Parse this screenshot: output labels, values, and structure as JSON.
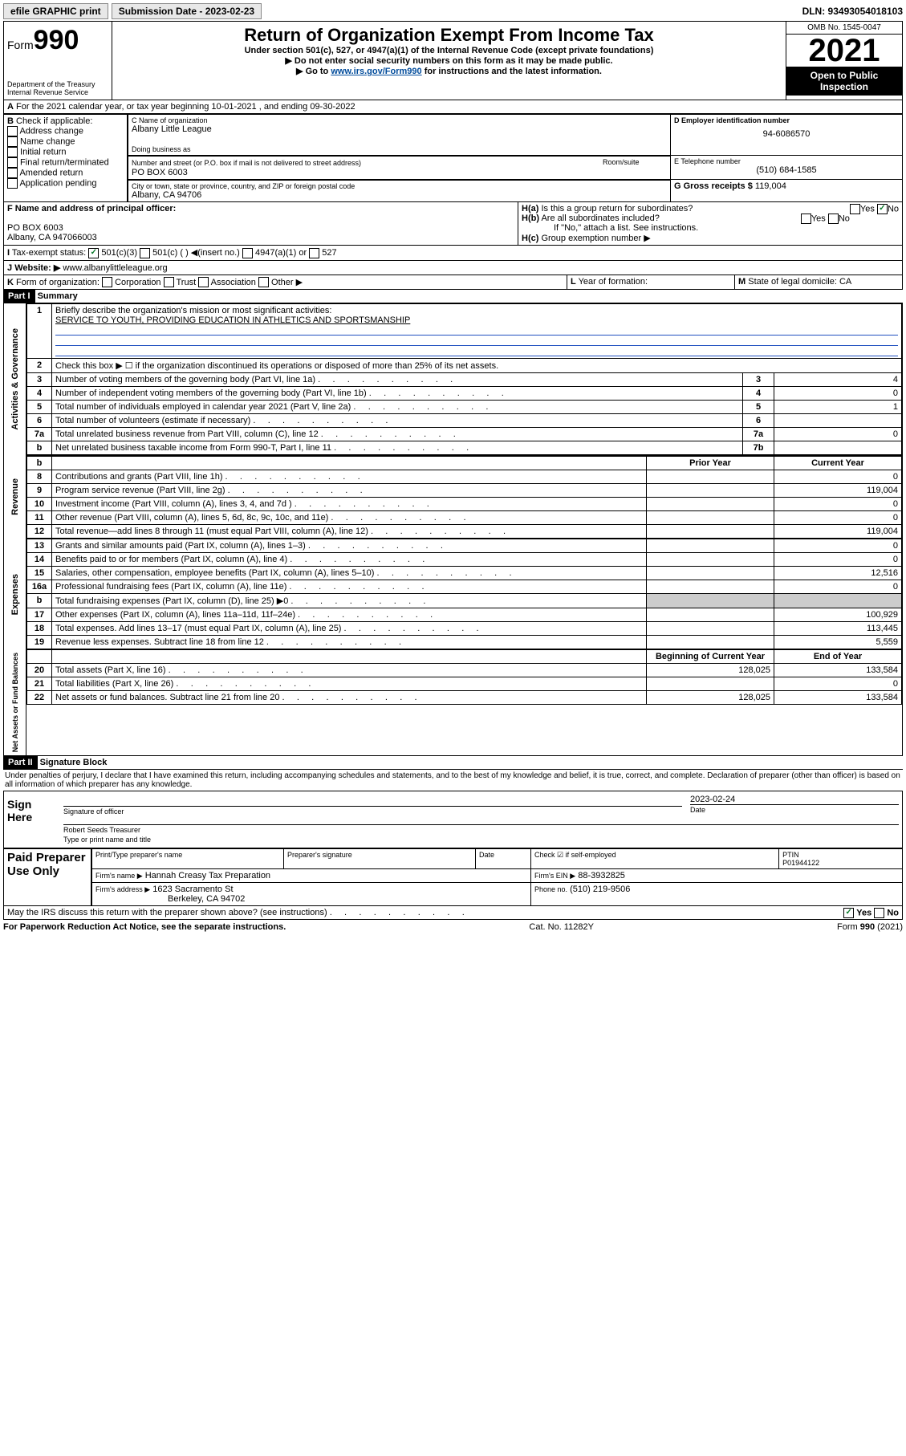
{
  "topbar": {
    "efile": "efile GRAPHIC print",
    "submission_label": "Submission Date - 2023-02-23",
    "dln": "DLN: 93493054018103"
  },
  "header": {
    "form_label": "Form",
    "form_no": "990",
    "dept": "Department of the Treasury",
    "irs": "Internal Revenue Service",
    "title": "Return of Organization Exempt From Income Tax",
    "sub1": "Under section 501(c), 527, or 4947(a)(1) of the Internal Revenue Code (except private foundations)",
    "sub2": "Do not enter social security numbers on this form as it may be made public.",
    "sub3_pre": "Go to ",
    "sub3_link": "www.irs.gov/Form990",
    "sub3_post": " for instructions and the latest information.",
    "omb": "OMB No. 1545-0047",
    "year": "2021",
    "open": "Open to Public Inspection"
  },
  "A": {
    "line": "For the 2021 calendar year, or tax year beginning 10-01-2021   , and ending 09-30-2022"
  },
  "B": {
    "label": "Check if applicable:",
    "opts": [
      "Address change",
      "Name change",
      "Initial return",
      "Final return/terminated",
      "Amended return",
      "Application pending"
    ]
  },
  "C": {
    "name_label": "C Name of organization",
    "name": "Albany Little League",
    "dba_label": "Doing business as",
    "addr_label": "Number and street (or P.O. box if mail is not delivered to street address)",
    "room_label": "Room/suite",
    "addr": "PO BOX 6003",
    "city_label": "City or town, state or province, country, and ZIP or foreign postal code",
    "city": "Albany, CA  94706"
  },
  "D": {
    "label": "D Employer identification number",
    "val": "94-6086570"
  },
  "E": {
    "label": "E Telephone number",
    "val": "(510) 684-1585"
  },
  "G": {
    "label": "G Gross receipts $",
    "val": "119,004"
  },
  "F": {
    "label": "F  Name and address of principal officer:",
    "addr1": "PO BOX 6003",
    "addr2": "Albany, CA  947066003"
  },
  "H": {
    "a": "Is this a group return for subordinates?",
    "b": "Are all subordinates included?",
    "b_note": "If \"No,\" attach a list. See instructions.",
    "c": "Group exemption number ▶"
  },
  "I": {
    "label": "Tax-exempt status:",
    "o1": "501(c)(3)",
    "o2": "501(c) (  ) ◀(insert no.)",
    "o3": "4947(a)(1) or",
    "o4": "527"
  },
  "J": {
    "label": "Website: ▶",
    "val": "www.albanylittleleague.org"
  },
  "K": {
    "label": "Form of organization:",
    "o1": "Corporation",
    "o2": "Trust",
    "o3": "Association",
    "o4": "Other ▶"
  },
  "L": {
    "label": "Year of formation:"
  },
  "M": {
    "label": "State of legal domicile:",
    "val": "CA"
  },
  "part1": {
    "title": "Part I",
    "sub": "Summary",
    "q1": "Briefly describe the organization's mission or most significant activities:",
    "q1a": "SERVICE TO YOUTH, PROVIDING EDUCATION IN ATHLETICS AND SPORTSMANSHIP",
    "q2": "Check this box ▶ ☐  if the organization discontinued its operations or disposed of more than 25% of its net assets.",
    "rows_gov": [
      {
        "n": "3",
        "t": "Number of voting members of the governing body (Part VI, line 1a)",
        "ln": "3",
        "v": "4"
      },
      {
        "n": "4",
        "t": "Number of independent voting members of the governing body (Part VI, line 1b)",
        "ln": "4",
        "v": "0"
      },
      {
        "n": "5",
        "t": "Total number of individuals employed in calendar year 2021 (Part V, line 2a)",
        "ln": "5",
        "v": "1"
      },
      {
        "n": "6",
        "t": "Total number of volunteers (estimate if necessary)",
        "ln": "6",
        "v": ""
      },
      {
        "n": "7a",
        "t": "Total unrelated business revenue from Part VIII, column (C), line 12",
        "ln": "7a",
        "v": "0"
      },
      {
        "n": "b",
        "t": "Net unrelated business taxable income from Form 990-T, Part I, line 11",
        "ln": "7b",
        "v": ""
      }
    ],
    "col_prior": "Prior Year",
    "col_current": "Current Year",
    "rows_rev": [
      {
        "n": "8",
        "t": "Contributions and grants (Part VIII, line 1h)",
        "p": "",
        "c": "0"
      },
      {
        "n": "9",
        "t": "Program service revenue (Part VIII, line 2g)",
        "p": "",
        "c": "119,004"
      },
      {
        "n": "10",
        "t": "Investment income (Part VIII, column (A), lines 3, 4, and 7d )",
        "p": "",
        "c": "0"
      },
      {
        "n": "11",
        "t": "Other revenue (Part VIII, column (A), lines 5, 6d, 8c, 9c, 10c, and 11e)",
        "p": "",
        "c": "0"
      },
      {
        "n": "12",
        "t": "Total revenue—add lines 8 through 11 (must equal Part VIII, column (A), line 12)",
        "p": "",
        "c": "119,004"
      }
    ],
    "rows_exp": [
      {
        "n": "13",
        "t": "Grants and similar amounts paid (Part IX, column (A), lines 1–3)",
        "p": "",
        "c": "0"
      },
      {
        "n": "14",
        "t": "Benefits paid to or for members (Part IX, column (A), line 4)",
        "p": "",
        "c": "0"
      },
      {
        "n": "15",
        "t": "Salaries, other compensation, employee benefits (Part IX, column (A), lines 5–10)",
        "p": "",
        "c": "12,516"
      },
      {
        "n": "16a",
        "t": "Professional fundraising fees (Part IX, column (A), line 11e)",
        "p": "",
        "c": "0"
      },
      {
        "n": "b",
        "t": "Total fundraising expenses (Part IX, column (D), line 25) ▶0",
        "p": "shade",
        "c": "shade"
      },
      {
        "n": "17",
        "t": "Other expenses (Part IX, column (A), lines 11a–11d, 11f–24e)",
        "p": "",
        "c": "100,929"
      },
      {
        "n": "18",
        "t": "Total expenses. Add lines 13–17 (must equal Part IX, column (A), line 25)",
        "p": "",
        "c": "113,445"
      },
      {
        "n": "19",
        "t": "Revenue less expenses. Subtract line 18 from line 12",
        "p": "",
        "c": "5,559"
      }
    ],
    "col_begin": "Beginning of Current Year",
    "col_end": "End of Year",
    "rows_net": [
      {
        "n": "20",
        "t": "Total assets (Part X, line 16)",
        "p": "128,025",
        "c": "133,584"
      },
      {
        "n": "21",
        "t": "Total liabilities (Part X, line 26)",
        "p": "",
        "c": "0"
      },
      {
        "n": "22",
        "t": "Net assets or fund balances. Subtract line 21 from line 20",
        "p": "128,025",
        "c": "133,584"
      }
    ]
  },
  "part2": {
    "title": "Part II",
    "sub": "Signature Block",
    "decl": "Under penalties of perjury, I declare that I have examined this return, including accompanying schedules and statements, and to the best of my knowledge and belief, it is true, correct, and complete. Declaration of preparer (other than officer) is based on all information of which preparer has any knowledge.",
    "sign_here": "Sign Here",
    "sig_officer": "Signature of officer",
    "date_label": "Date",
    "date": "2023-02-24",
    "name": "Robert Seeds  Treasurer",
    "name_label": "Type or print name and title",
    "paid": "Paid Preparer Use Only",
    "h1": "Print/Type preparer's name",
    "h2": "Preparer's signature",
    "h3": "Date",
    "chk_self": "Check ☑ if self-employed",
    "ptin_l": "PTIN",
    "ptin": "P01944122",
    "firm_l": "Firm's name   ▶",
    "firm": "Hannah Creasy Tax Preparation",
    "ein_l": "Firm's EIN ▶",
    "ein": "88-3932825",
    "addr_l": "Firm's address ▶",
    "addr": "1623 Sacramento St",
    "addr2": "Berkeley, CA  94702",
    "phone_l": "Phone no.",
    "phone": "(510) 219-9506",
    "discuss": "May the IRS discuss this return with the preparer shown above? (see instructions)"
  },
  "footer": {
    "l": "For Paperwork Reduction Act Notice, see the separate instructions.",
    "m": "Cat. No. 11282Y",
    "r": "Form 990 (2021)"
  },
  "vlabels": {
    "gov": "Activities & Governance",
    "rev": "Revenue",
    "exp": "Expenses",
    "net": "Net Assets or Fund Balances"
  }
}
